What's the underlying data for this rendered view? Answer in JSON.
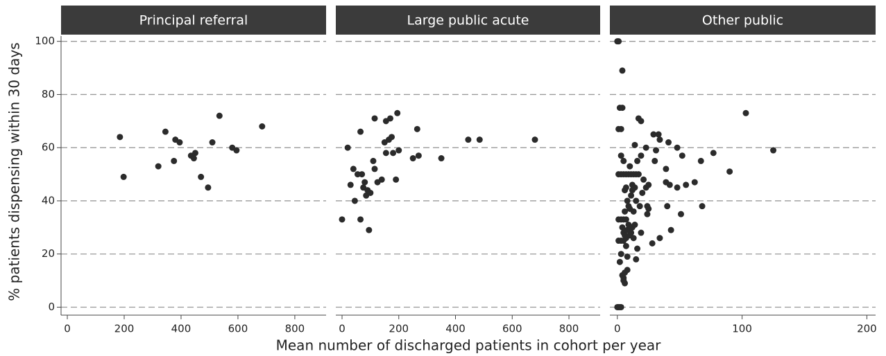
{
  "chart_data": [
    {
      "type": "scatter",
      "title": "Principal referral",
      "color": "#2b2b2b",
      "grid": true,
      "ylabel": "% patients dispensing within 30 days",
      "xlim": [
        -22,
        910
      ],
      "xticks": [
        0,
        200,
        400,
        600,
        800
      ],
      "ylim": [
        -3,
        102
      ],
      "yticks": [
        0,
        20,
        40,
        60,
        80,
        100
      ],
      "x": [
        185,
        198,
        320,
        345,
        375,
        380,
        395,
        435,
        445,
        450,
        470,
        495,
        510,
        535,
        580,
        595,
        685
      ],
      "values": [
        64,
        49,
        53,
        66,
        55,
        63,
        62,
        57,
        56,
        58,
        49,
        45,
        62,
        72,
        60,
        59,
        68
      ]
    },
    {
      "type": "scatter",
      "title": "Large public acute",
      "color": "#2b2b2b",
      "grid": true,
      "xlabel": "Mean number of discharged patients in cohort per year",
      "xlim": [
        -22,
        910
      ],
      "xticks": [
        0,
        200,
        400,
        600,
        800
      ],
      "ylim": [
        -3,
        102
      ],
      "yticks": [
        0,
        20,
        40,
        60,
        80,
        100
      ],
      "x": [
        0,
        20,
        30,
        40,
        45,
        55,
        65,
        65,
        70,
        75,
        80,
        85,
        90,
        95,
        100,
        110,
        115,
        115,
        125,
        140,
        150,
        155,
        155,
        165,
        170,
        175,
        180,
        190,
        195,
        200,
        250,
        265,
        270,
        350,
        445,
        485,
        680
      ],
      "values": [
        33,
        60,
        46,
        52,
        40,
        50,
        66,
        33,
        50,
        45,
        47,
        42,
        44,
        29,
        43,
        55,
        52,
        71,
        47,
        48,
        62,
        70,
        58,
        63,
        71,
        64,
        58,
        48,
        73,
        59,
        56,
        67,
        57,
        56,
        63,
        63,
        63
      ]
    },
    {
      "type": "scatter",
      "title": "Other public",
      "color": "#2b2b2b",
      "grid": true,
      "xlim": [
        -6,
        207
      ],
      "xticks": [
        0,
        100,
        200
      ],
      "ylim": [
        -3,
        102
      ],
      "yticks": [
        0,
        20,
        40,
        60,
        80,
        100
      ],
      "x": [
        0,
        1,
        4,
        2,
        4,
        1,
        3,
        0,
        1,
        2,
        3,
        1,
        3,
        5,
        7,
        1,
        3,
        5,
        2,
        3,
        4,
        5,
        6,
        5,
        6,
        8,
        1,
        3,
        5,
        7,
        9,
        11,
        13,
        15,
        17,
        3,
        5,
        6,
        7,
        8,
        9,
        10,
        6,
        4,
        5,
        6,
        7,
        8,
        9,
        10,
        12,
        11,
        13,
        14,
        7,
        8,
        10,
        11,
        12,
        12,
        13,
        14,
        15,
        16,
        16,
        17,
        18,
        19,
        19,
        19,
        20,
        21,
        23,
        23,
        24,
        24,
        25,
        25,
        28,
        29,
        30,
        31,
        33,
        34,
        34,
        39,
        39,
        40,
        41,
        42,
        43,
        48,
        48,
        51,
        52,
        55,
        62,
        67,
        68,
        77,
        90,
        103,
        125,
        14,
        15
      ],
      "values": [
        100,
        100,
        89,
        75,
        75,
        67,
        67,
        0,
        0,
        0,
        0,
        33,
        33,
        33,
        33,
        25,
        25,
        25,
        17,
        20,
        12,
        10,
        9,
        11,
        13,
        14,
        50,
        50,
        50,
        50,
        50,
        50,
        50,
        50,
        50,
        57,
        55,
        44,
        45,
        40,
        38,
        37,
        36,
        30,
        28,
        27,
        26,
        29,
        31,
        27,
        30,
        28,
        26,
        31,
        23,
        19,
        53,
        42,
        44,
        46,
        36,
        45,
        40,
        22,
        55,
        71,
        38,
        57,
        70,
        28,
        43,
        48,
        60,
        45,
        38,
        35,
        37,
        46,
        24,
        65,
        55,
        59,
        65,
        63,
        26,
        47,
        52,
        38,
        62,
        46,
        29,
        45,
        60,
        35,
        57,
        46,
        47,
        55,
        38,
        58,
        51,
        73,
        59,
        61,
        18
      ]
    }
  ]
}
